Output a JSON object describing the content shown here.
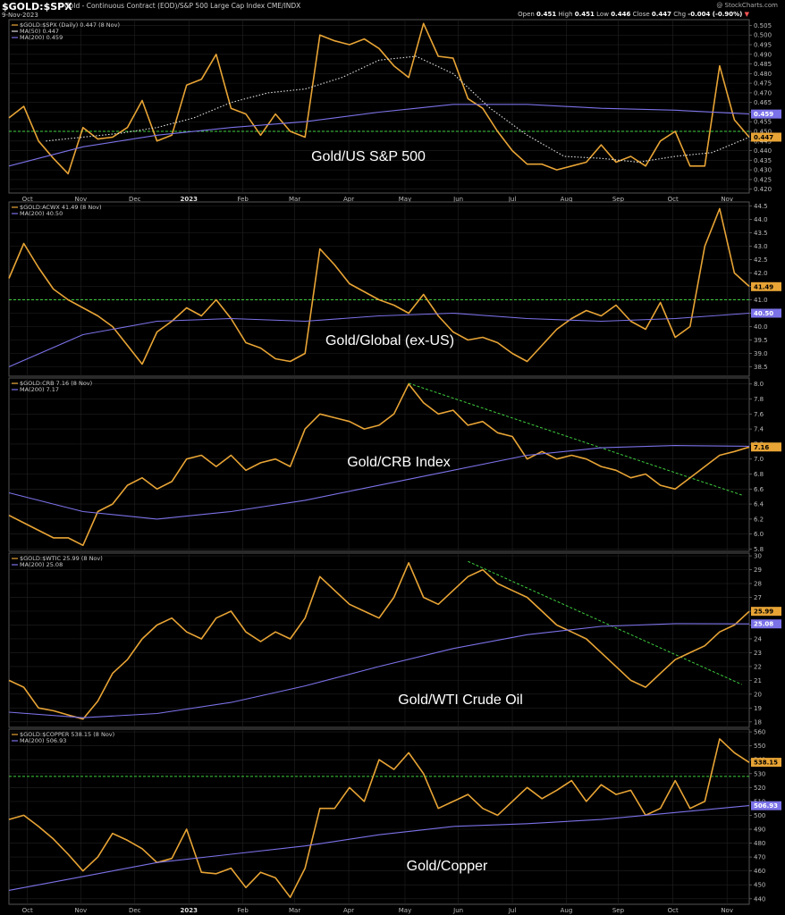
{
  "header": {
    "symbol": "$GOLD:$SPX",
    "title": "Gold - Continuous Contract (EOD)/S&P 500 Large Cap Index  CME/INDX",
    "date": "9-Nov-2023",
    "brand": "@ StockCharts.com",
    "open_label": "Open",
    "open": "0.451",
    "high_label": "High",
    "high": "0.451",
    "low_label": "Low",
    "low": "0.446",
    "close_label": "Close",
    "close": "0.447",
    "chg_label": "Chg",
    "chg": "-0.004 (-0.90%)",
    "chg_marker": "▼"
  },
  "colors": {
    "price": "#e8a435",
    "ma200": "#7b72e8",
    "ma50": "#e0e0e0",
    "guide": "#3fcf3f",
    "background": "#000000",
    "grid": "#222222"
  },
  "x_months": [
    "Oct",
    "Nov",
    "Dec",
    "2023",
    "Feb",
    "Mar",
    "Apr",
    "May",
    "Jun",
    "Jul",
    "Aug",
    "Sep",
    "Oct",
    "Nov"
  ],
  "chart_data": [
    {
      "type": "line",
      "label": "Gold/US S&P 500",
      "legend": [
        "$GOLD:$SPX (Daily) 0.447 (8 Nov)",
        "MA(50) 0.447",
        "MA(200) 0.459"
      ],
      "ylim": [
        0.418,
        0.508
      ],
      "yticks": [
        "0.505",
        "0.500",
        "0.495",
        "0.490",
        "0.485",
        "0.480",
        "0.475",
        "0.470",
        "0.465",
        "0.460",
        "0.455",
        "0.450",
        "0.445",
        "0.440",
        "0.435",
        "0.430",
        "0.425",
        "0.420"
      ],
      "guide_h": 0.45,
      "tags": [
        {
          "text": "0.459",
          "value": 0.459,
          "color": "ma200"
        },
        {
          "text": "0.447",
          "value": 0.447,
          "color": "price"
        }
      ],
      "series": [
        {
          "name": "$GOLD:$SPX",
          "color": "price",
          "style": "solid",
          "x": [
            0,
            0.02,
            0.04,
            0.06,
            0.08,
            0.1,
            0.12,
            0.14,
            0.16,
            0.18,
            0.2,
            0.22,
            0.24,
            0.26,
            0.28,
            0.3,
            0.32,
            0.34,
            0.36,
            0.38,
            0.4,
            0.42,
            0.44,
            0.46,
            0.48,
            0.5,
            0.52,
            0.54,
            0.56,
            0.58,
            0.6,
            0.62,
            0.64,
            0.66,
            0.68,
            0.7,
            0.72,
            0.74,
            0.76,
            0.78,
            0.8,
            0.82,
            0.84,
            0.86,
            0.88,
            0.9,
            0.92,
            0.94,
            0.96,
            0.98,
            1
          ],
          "y": [
            0.457,
            0.463,
            0.445,
            0.436,
            0.428,
            0.452,
            0.446,
            0.447,
            0.452,
            0.466,
            0.445,
            0.448,
            0.474,
            0.477,
            0.49,
            0.462,
            0.459,
            0.448,
            0.459,
            0.45,
            0.447,
            0.5,
            0.497,
            0.495,
            0.498,
            0.493,
            0.484,
            0.478,
            0.506,
            0.489,
            0.488,
            0.467,
            0.462,
            0.45,
            0.44,
            0.433,
            0.433,
            0.43,
            0.432,
            0.434,
            0.443,
            0.434,
            0.437,
            0.432,
            0.445,
            0.45,
            0.432,
            0.432,
            0.484,
            0.456,
            0.447
          ]
        },
        {
          "name": "MA(50)",
          "color": "ma50",
          "style": "dotted",
          "x": [
            0.05,
            0.1,
            0.15,
            0.2,
            0.25,
            0.3,
            0.35,
            0.4,
            0.45,
            0.5,
            0.55,
            0.6,
            0.65,
            0.7,
            0.75,
            0.8,
            0.85,
            0.9,
            0.95,
            1
          ],
          "y": [
            0.445,
            0.447,
            0.449,
            0.452,
            0.457,
            0.465,
            0.47,
            0.472,
            0.478,
            0.487,
            0.489,
            0.48,
            0.462,
            0.448,
            0.437,
            0.436,
            0.434,
            0.437,
            0.439,
            0.447
          ]
        },
        {
          "name": "MA(200)",
          "color": "ma200",
          "style": "solid",
          "x": [
            0,
            0.1,
            0.2,
            0.3,
            0.4,
            0.5,
            0.55,
            0.6,
            0.65,
            0.7,
            0.8,
            0.9,
            1
          ],
          "y": [
            0.432,
            0.442,
            0.448,
            0.452,
            0.455,
            0.46,
            0.462,
            0.464,
            0.464,
            0.464,
            0.462,
            0.461,
            0.459
          ]
        }
      ]
    },
    {
      "type": "line",
      "label": "Gold/Global (ex-US)",
      "legend": [
        "$GOLD:ACWX 41.49 (8 Nov)",
        "MA(200) 40.50"
      ],
      "ylim": [
        38.15,
        44.65
      ],
      "yticks": [
        "44.5",
        "44.0",
        "43.5",
        "43.0",
        "42.5",
        "42.0",
        "41.5",
        "41.0",
        "40.5",
        "40.0",
        "39.5",
        "39.0",
        "38.5"
      ],
      "guide_h": 41.0,
      "tags": [
        {
          "text": "41.49",
          "value": 41.49,
          "color": "price"
        },
        {
          "text": "40.50",
          "value": 40.5,
          "color": "ma200"
        }
      ],
      "series": [
        {
          "name": "$GOLD:ACWX",
          "color": "price",
          "style": "solid",
          "x": [
            0,
            0.02,
            0.04,
            0.06,
            0.08,
            0.1,
            0.12,
            0.14,
            0.16,
            0.18,
            0.2,
            0.22,
            0.24,
            0.26,
            0.28,
            0.3,
            0.32,
            0.34,
            0.36,
            0.38,
            0.4,
            0.42,
            0.44,
            0.46,
            0.48,
            0.5,
            0.52,
            0.54,
            0.56,
            0.58,
            0.6,
            0.62,
            0.64,
            0.66,
            0.68,
            0.7,
            0.72,
            0.74,
            0.76,
            0.78,
            0.8,
            0.82,
            0.84,
            0.86,
            0.88,
            0.9,
            0.92,
            0.94,
            0.96,
            0.98,
            1
          ],
          "y": [
            41.8,
            43.1,
            42.2,
            41.4,
            41.0,
            40.7,
            40.4,
            40.0,
            39.3,
            38.6,
            39.8,
            40.2,
            40.7,
            40.4,
            41.0,
            40.3,
            39.4,
            39.2,
            38.8,
            38.7,
            39.0,
            42.9,
            42.3,
            41.6,
            41.3,
            41.0,
            40.8,
            40.5,
            41.2,
            40.4,
            39.8,
            39.5,
            39.6,
            39.4,
            39.0,
            38.7,
            39.3,
            39.9,
            40.3,
            40.6,
            40.4,
            40.8,
            40.2,
            39.9,
            40.9,
            39.6,
            40.0,
            43.0,
            44.4,
            42.0,
            41.5
          ]
        },
        {
          "name": "MA(200)",
          "color": "ma200",
          "style": "solid",
          "x": [
            0,
            0.1,
            0.2,
            0.3,
            0.4,
            0.5,
            0.6,
            0.7,
            0.8,
            0.9,
            1
          ],
          "y": [
            38.5,
            39.7,
            40.2,
            40.3,
            40.2,
            40.4,
            40.5,
            40.3,
            40.2,
            40.3,
            40.5
          ]
        }
      ]
    },
    {
      "type": "line",
      "label": "Gold/CRB Index",
      "legend": [
        "$GOLD:CRB 7.16 (8 Nov)",
        "MA(200) 7.17"
      ],
      "ylim": [
        5.77,
        8.08
      ],
      "yticks": [
        "8.0",
        "7.8",
        "7.6",
        "7.4",
        "7.2",
        "7.0",
        "6.8",
        "6.6",
        "6.4",
        "6.2",
        "6.0",
        "5.8"
      ],
      "guide_trend": {
        "x": [
          0.54,
          0.99
        ],
        "y": [
          8.01,
          6.52
        ]
      },
      "tags": [
        {
          "text": "7.16",
          "value": 7.16,
          "color": "price"
        }
      ],
      "series": [
        {
          "name": "$GOLD:CRB",
          "color": "price",
          "style": "solid",
          "x": [
            0,
            0.02,
            0.04,
            0.06,
            0.08,
            0.1,
            0.12,
            0.14,
            0.16,
            0.18,
            0.2,
            0.22,
            0.24,
            0.26,
            0.28,
            0.3,
            0.32,
            0.34,
            0.36,
            0.38,
            0.4,
            0.42,
            0.44,
            0.46,
            0.48,
            0.5,
            0.52,
            0.54,
            0.56,
            0.58,
            0.6,
            0.62,
            0.64,
            0.66,
            0.68,
            0.7,
            0.72,
            0.74,
            0.76,
            0.78,
            0.8,
            0.82,
            0.84,
            0.86,
            0.88,
            0.9,
            0.92,
            0.94,
            0.96,
            0.98,
            1
          ],
          "y": [
            6.25,
            6.15,
            6.05,
            5.95,
            5.95,
            5.85,
            6.3,
            6.4,
            6.65,
            6.75,
            6.6,
            6.7,
            7.0,
            7.05,
            6.9,
            7.05,
            6.85,
            6.95,
            7.0,
            6.9,
            7.4,
            7.6,
            7.55,
            7.5,
            7.4,
            7.45,
            7.6,
            8.0,
            7.75,
            7.6,
            7.65,
            7.45,
            7.5,
            7.35,
            7.3,
            7.0,
            7.1,
            7.0,
            7.05,
            7.0,
            6.9,
            6.85,
            6.75,
            6.8,
            6.65,
            6.6,
            6.75,
            6.9,
            7.05,
            7.1,
            7.16
          ]
        },
        {
          "name": "MA(200)",
          "color": "ma200",
          "style": "solid",
          "x": [
            0,
            0.1,
            0.2,
            0.3,
            0.4,
            0.5,
            0.6,
            0.7,
            0.8,
            0.9,
            1
          ],
          "y": [
            6.55,
            6.3,
            6.2,
            6.3,
            6.45,
            6.65,
            6.85,
            7.05,
            7.15,
            7.18,
            7.17
          ]
        }
      ]
    },
    {
      "type": "line",
      "label": "Gold/WTI Crude Oil",
      "legend": [
        "$GOLD:$WTIC 25.99 (8 Nov)",
        "MA(200) 25.08"
      ],
      "ylim": [
        17.6,
        30.2
      ],
      "yticks": [
        "30",
        "29",
        "28",
        "27",
        "26",
        "25",
        "24",
        "23",
        "22",
        "21",
        "20",
        "19",
        "18"
      ],
      "guide_trend": {
        "x": [
          0.62,
          0.99
        ],
        "y": [
          29.6,
          20.7
        ]
      },
      "tags": [
        {
          "text": "25.99",
          "value": 25.99,
          "color": "price"
        },
        {
          "text": "25.08",
          "value": 25.08,
          "color": "ma200"
        }
      ],
      "series": [
        {
          "name": "$GOLD:$WTIC",
          "color": "price",
          "style": "solid",
          "x": [
            0,
            0.02,
            0.04,
            0.06,
            0.08,
            0.1,
            0.12,
            0.14,
            0.16,
            0.18,
            0.2,
            0.22,
            0.24,
            0.26,
            0.28,
            0.3,
            0.32,
            0.34,
            0.36,
            0.38,
            0.4,
            0.42,
            0.44,
            0.46,
            0.48,
            0.5,
            0.52,
            0.54,
            0.56,
            0.58,
            0.6,
            0.62,
            0.64,
            0.66,
            0.68,
            0.7,
            0.72,
            0.74,
            0.76,
            0.78,
            0.8,
            0.82,
            0.84,
            0.86,
            0.88,
            0.9,
            0.92,
            0.94,
            0.96,
            0.98,
            1
          ],
          "y": [
            21.0,
            20.5,
            19.0,
            18.8,
            18.5,
            18.2,
            19.5,
            21.5,
            22.5,
            24.0,
            25.0,
            25.5,
            24.5,
            24.0,
            25.5,
            26.0,
            24.5,
            23.8,
            24.5,
            24.0,
            25.5,
            28.5,
            27.5,
            26.5,
            26.0,
            25.5,
            27.0,
            29.5,
            27.0,
            26.5,
            27.5,
            28.5,
            29.0,
            28.0,
            27.5,
            27.0,
            26.0,
            25.0,
            24.5,
            24.0,
            23.0,
            22.0,
            21.0,
            20.5,
            21.5,
            22.5,
            23.0,
            23.5,
            24.5,
            25.0,
            25.99
          ]
        },
        {
          "name": "MA(200)",
          "color": "ma200",
          "style": "solid",
          "x": [
            0,
            0.1,
            0.2,
            0.3,
            0.4,
            0.5,
            0.6,
            0.7,
            0.8,
            0.9,
            1
          ],
          "y": [
            18.7,
            18.3,
            18.6,
            19.4,
            20.6,
            22.0,
            23.3,
            24.3,
            24.9,
            25.1,
            25.08
          ]
        }
      ]
    },
    {
      "type": "line",
      "label": "Gold/Copper",
      "legend": [
        "$GOLD:$COPPER 538.15 (8 Nov)",
        "MA(200) 506.93"
      ],
      "ylim": [
        436,
        562
      ],
      "yticks": [
        "560",
        "550",
        "540",
        "530",
        "520",
        "510",
        "500",
        "490",
        "480",
        "470",
        "460",
        "450",
        "440"
      ],
      "guide_h": 528,
      "tags": [
        {
          "text": "538.15",
          "value": 538.15,
          "color": "price"
        },
        {
          "text": "506.93",
          "value": 506.93,
          "color": "ma200"
        }
      ],
      "series": [
        {
          "name": "$GOLD:$COPPER",
          "color": "price",
          "style": "solid",
          "x": [
            0,
            0.02,
            0.04,
            0.06,
            0.08,
            0.1,
            0.12,
            0.14,
            0.16,
            0.18,
            0.2,
            0.22,
            0.24,
            0.26,
            0.28,
            0.3,
            0.32,
            0.34,
            0.36,
            0.38,
            0.4,
            0.42,
            0.44,
            0.46,
            0.48,
            0.5,
            0.52,
            0.54,
            0.56,
            0.58,
            0.6,
            0.62,
            0.64,
            0.66,
            0.68,
            0.7,
            0.72,
            0.74,
            0.76,
            0.78,
            0.8,
            0.82,
            0.84,
            0.86,
            0.88,
            0.9,
            0.92,
            0.94,
            0.96,
            0.98,
            1
          ],
          "y": [
            497,
            500,
            492,
            483,
            472,
            460,
            470,
            487,
            482,
            476,
            466,
            469,
            490,
            459,
            458,
            462,
            448,
            459,
            455,
            441,
            462,
            505,
            505,
            520,
            510,
            540,
            533,
            545,
            530,
            505,
            510,
            515,
            505,
            500,
            510,
            520,
            512,
            518,
            525,
            510,
            522,
            515,
            518,
            500,
            505,
            525,
            505,
            510,
            555,
            545,
            538
          ]
        },
        {
          "name": "MA(200)",
          "color": "ma200",
          "style": "solid",
          "x": [
            0,
            0.1,
            0.2,
            0.3,
            0.4,
            0.5,
            0.6,
            0.7,
            0.8,
            0.9,
            1
          ],
          "y": [
            446,
            456,
            466,
            472,
            478,
            486,
            492,
            494,
            497,
            502,
            507
          ]
        }
      ]
    }
  ]
}
